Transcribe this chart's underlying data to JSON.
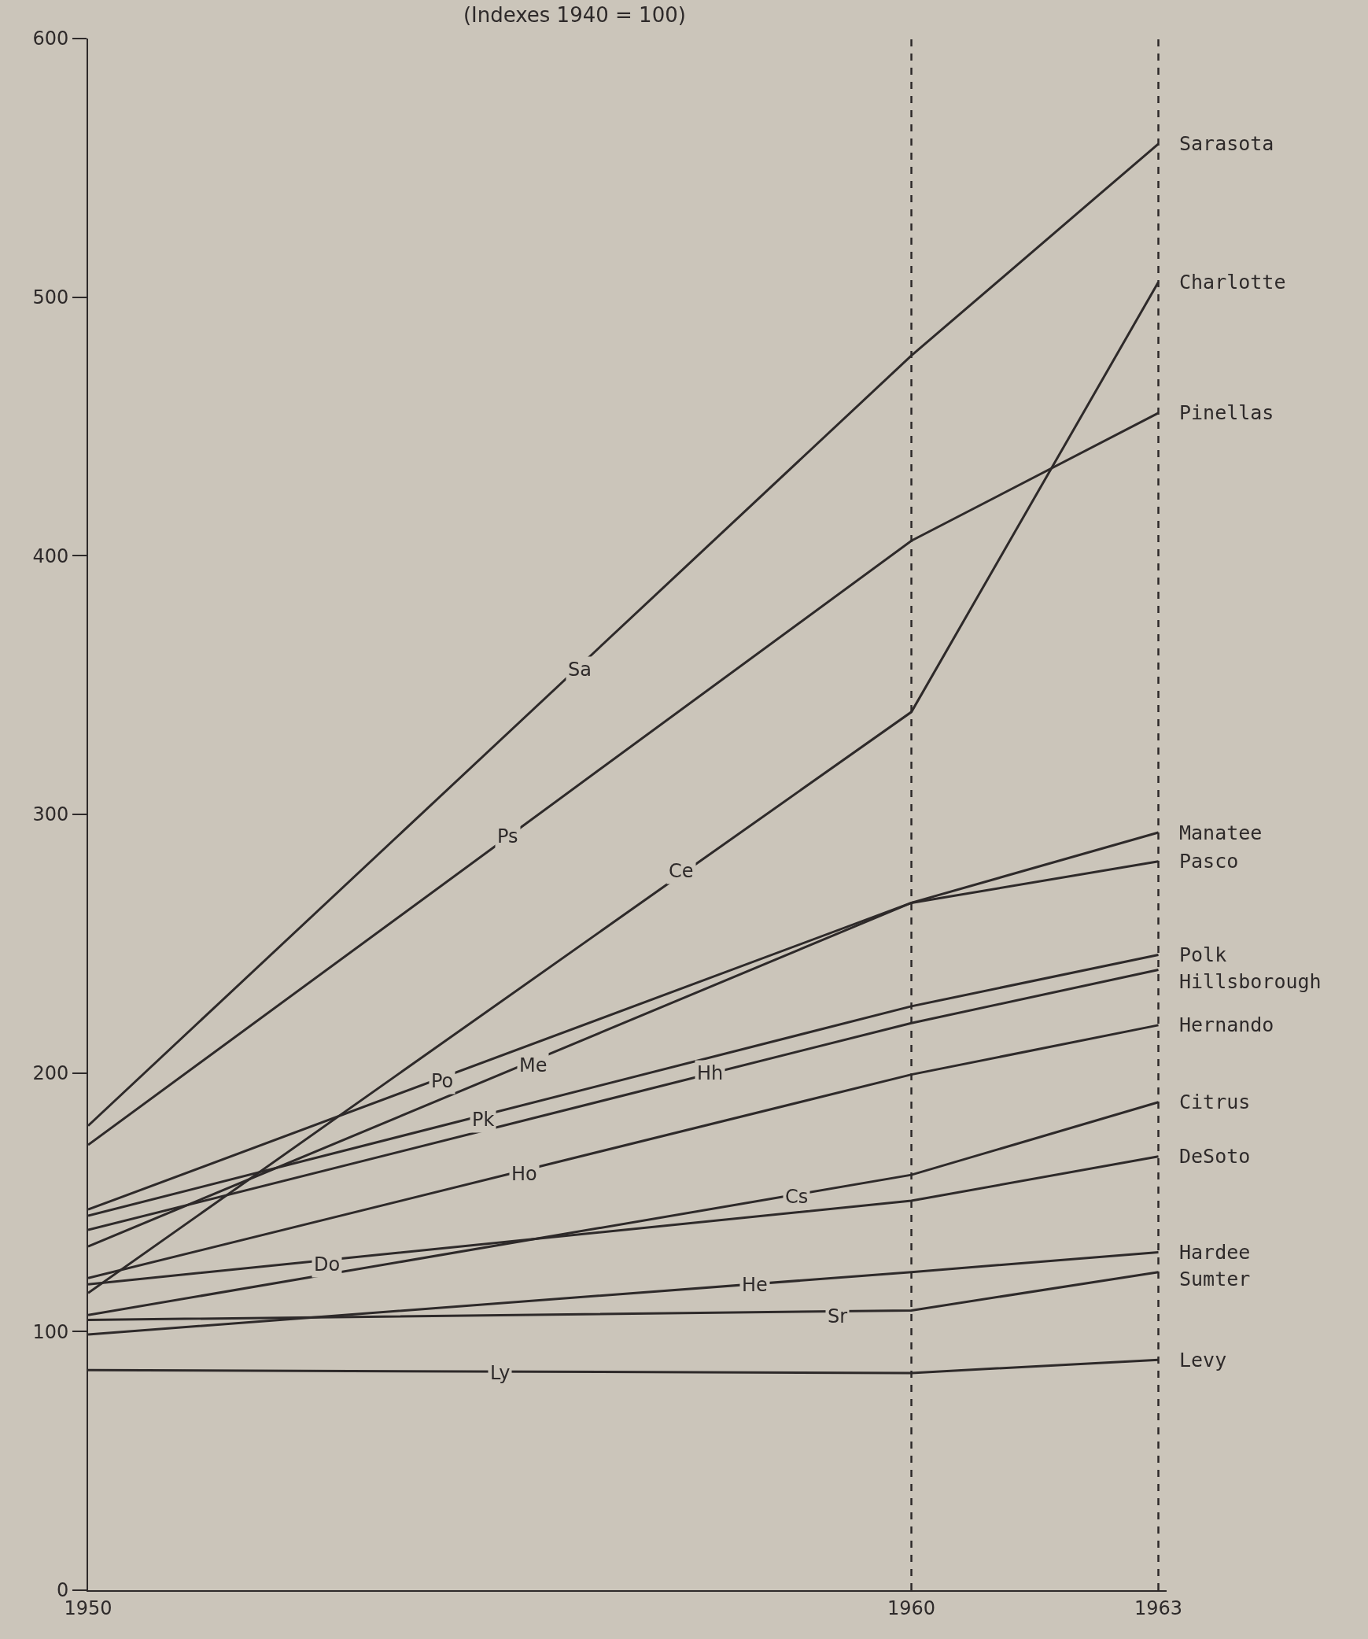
{
  "chart_data": {
    "type": "line",
    "title": "(Indexes 1940 = 100)",
    "x": [
      1950,
      1960,
      1963
    ],
    "series": [
      {
        "name": "Sarasota",
        "color": "#2e2a2a",
        "values": [
          179.6,
          477.4,
          559.3
        ]
      },
      {
        "name": "Charlotte",
        "color": "#2e2a2a",
        "values": [
          114.9,
          339.6,
          505.8
        ]
      },
      {
        "name": "Pinellas",
        "color": "#2e2a2a",
        "values": [
          172.2,
          405.8,
          455.2
        ]
      },
      {
        "name": "Manatee",
        "color": "#2e2a2a",
        "values": [
          132.9,
          265.8,
          293
        ]
      },
      {
        "name": "Pasco",
        "color": "#2e2a2a",
        "values": [
          147.2,
          265.8,
          281.8
        ]
      },
      {
        "name": "Polk",
        "color": "#2e2a2a",
        "values": [
          144.8,
          225.8,
          245.7
        ]
      },
      {
        "name": "Hillsborough",
        "color": "#2e2a2a",
        "values": [
          139.3,
          219.3,
          239.9
        ]
      },
      {
        "name": "Hernando",
        "color": "#2e2a2a",
        "values": [
          120.7,
          199.4,
          218.5
        ]
      },
      {
        "name": "Citrus",
        "color": "#2e2a2a",
        "values": [
          106.4,
          160.6,
          188.7
        ]
      },
      {
        "name": "DeSoto",
        "color": "#2e2a2a",
        "values": [
          118.3,
          150.6,
          167.7
        ]
      },
      {
        "name": "Hardee",
        "color": "#2e2a2a",
        "values": [
          98.9,
          123,
          130.7
        ]
      },
      {
        "name": "Sumter",
        "color": "#2e2a2a",
        "values": [
          104.5,
          108.2,
          123
        ]
      },
      {
        "name": "Levy",
        "color": "#2e2a2a",
        "values": [
          85.1,
          84,
          89.1
        ]
      }
    ],
    "annotations": [
      {
        "text": "Sa",
        "x": 1955.97,
        "y": 356
      },
      {
        "text": "Ps",
        "x": 1955.1,
        "y": 291.5
      },
      {
        "text": "Ce",
        "x": 1957.2,
        "y": 278
      },
      {
        "text": "Po",
        "x": 1954.3,
        "y": 197
      },
      {
        "text": "Me",
        "x": 1955.4,
        "y": 203
      },
      {
        "text": "Pk",
        "x": 1954.8,
        "y": 182
      },
      {
        "text": "Hh",
        "x": 1957.55,
        "y": 200
      },
      {
        "text": "Ho",
        "x": 1955.3,
        "y": 161
      },
      {
        "text": "Do",
        "x": 1952.9,
        "y": 126
      },
      {
        "text": "Cs",
        "x": 1958.6,
        "y": 152
      },
      {
        "text": "He",
        "x": 1958.1,
        "y": 118
      },
      {
        "text": "Sr",
        "x": 1959.1,
        "y": 106
      },
      {
        "text": "Ly",
        "x": 1955.0,
        "y": 84
      }
    ],
    "xlim": [
      1950,
      1963.1
    ],
    "xticks": [
      1950,
      1960,
      1963
    ],
    "ylim": [
      0,
      600
    ],
    "yticks": [
      0,
      100,
      200,
      300,
      400,
      500,
      600
    ],
    "ref_lines": [
      {
        "axis": "x",
        "value": 1960,
        "color": "#2e2a2a",
        "line_style": "dashed"
      },
      {
        "axis": "x",
        "value": 1963,
        "color": "#2e2a2a",
        "line_style": "dashed"
      }
    ],
    "grid": false,
    "legend": "right",
    "marker": "none",
    "line_style": "solid"
  }
}
